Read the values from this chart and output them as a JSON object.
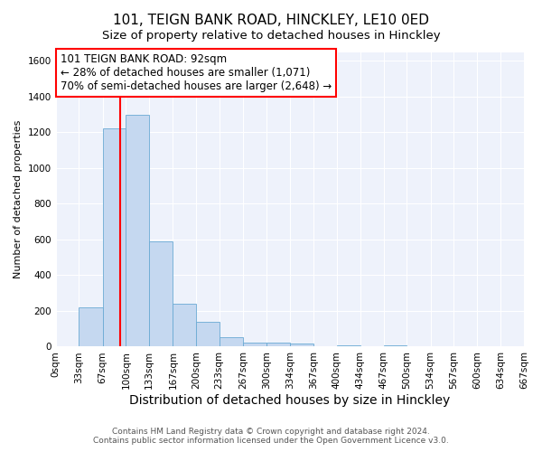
{
  "title": "101, TEIGN BANK ROAD, HINCKLEY, LE10 0ED",
  "subtitle": "Size of property relative to detached houses in Hinckley",
  "xlabel": "Distribution of detached houses by size in Hinckley",
  "ylabel": "Number of detached properties",
  "bar_edges": [
    0,
    33,
    67,
    100,
    133,
    167,
    200,
    233,
    267,
    300,
    334,
    367,
    400,
    434,
    467,
    500,
    534,
    567,
    600,
    634,
    667
  ],
  "bar_heights": [
    0,
    220,
    1220,
    1300,
    590,
    240,
    140,
    55,
    25,
    22,
    20,
    0,
    5,
    0,
    5,
    0,
    0,
    0,
    0,
    0
  ],
  "bar_color": "#c5d8f0",
  "bar_edgecolor": "#6aaad4",
  "vline_x": 92,
  "vline_color": "red",
  "annotation_line1": "101 TEIGN BANK ROAD: 92sqm",
  "annotation_line2": "← 28% of detached houses are smaller (1,071)",
  "annotation_line3": "70% of semi-detached houses are larger (2,648) →",
  "annotation_box_edgecolor": "red",
  "annotation_box_facecolor": "white",
  "ylim": [
    0,
    1650
  ],
  "tick_labels": [
    "0sqm",
    "33sqm",
    "67sqm",
    "100sqm",
    "133sqm",
    "167sqm",
    "200sqm",
    "233sqm",
    "267sqm",
    "300sqm",
    "334sqm",
    "367sqm",
    "400sqm",
    "434sqm",
    "467sqm",
    "500sqm",
    "534sqm",
    "567sqm",
    "600sqm",
    "634sqm",
    "667sqm"
  ],
  "footer1": "Contains HM Land Registry data © Crown copyright and database right 2024.",
  "footer2": "Contains public sector information licensed under the Open Government Licence v3.0.",
  "background_color": "#ffffff",
  "plot_bg_color": "#eef2fb",
  "grid_color": "#ffffff",
  "title_fontsize": 11,
  "subtitle_fontsize": 9.5,
  "xlabel_fontsize": 10,
  "ylabel_fontsize": 8,
  "tick_fontsize": 7.5,
  "annotation_fontsize": 8.5,
  "footer_fontsize": 6.5
}
